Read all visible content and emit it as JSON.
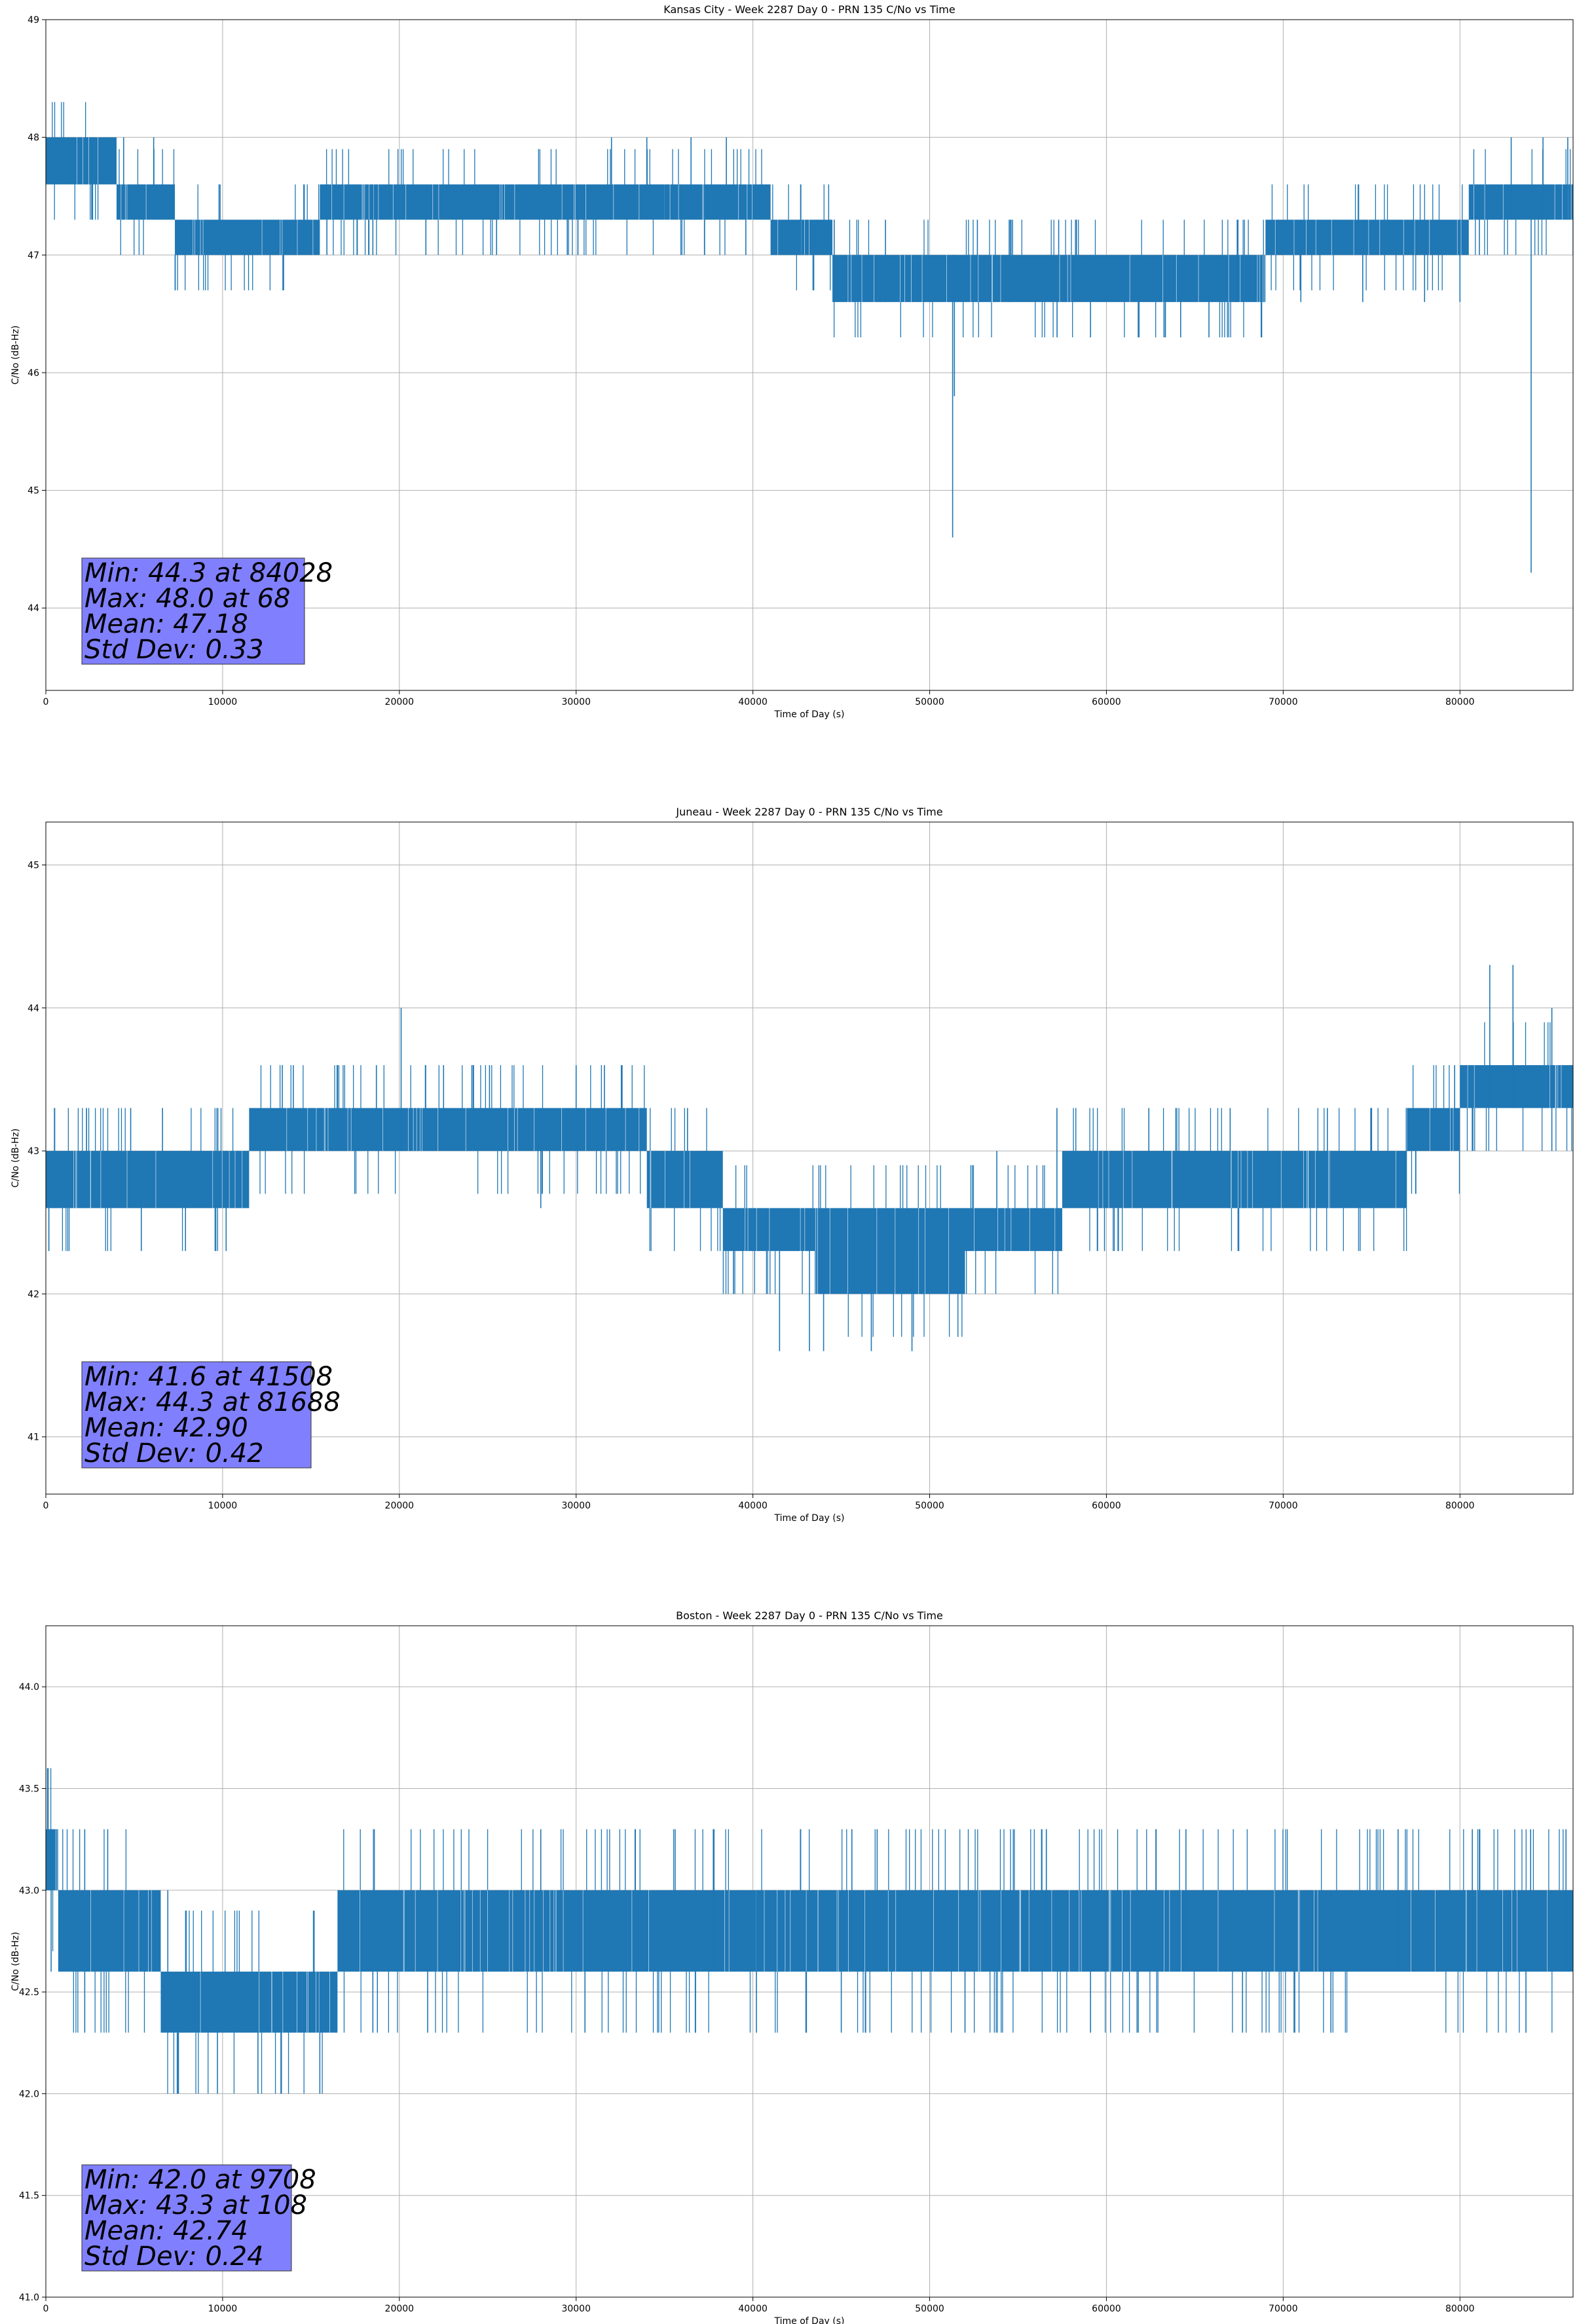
{
  "chart_data": [
    {
      "type": "line",
      "title": "Kansas City - Week 2287 Day 0 - PRN 135 C/No vs Time",
      "xlabel": "Time of Day (s)",
      "ylabel": "C/No (dB-Hz)",
      "xlim": [
        0,
        86400
      ],
      "ylim": [
        43.3,
        49.0
      ],
      "xticks": [
        0,
        10000,
        20000,
        30000,
        40000,
        50000,
        60000,
        70000,
        80000
      ],
      "xtick_labels": [
        "0",
        "10000",
        "20000",
        "30000",
        "40000",
        "50000",
        "60000",
        "70000",
        "80000"
      ],
      "yticks": [
        44,
        45,
        46,
        47,
        48,
        49
      ],
      "ytick_labels": [
        "44",
        "45",
        "46",
        "47",
        "48",
        "49"
      ],
      "grid": true,
      "color": "#1f77b4",
      "bands": [
        {
          "x0": 0,
          "x1": 4000,
          "lo": 47.6,
          "hi": 48.0
        },
        {
          "x0": 4000,
          "x1": 7300,
          "lo": 47.3,
          "hi": 47.6
        },
        {
          "x0": 7300,
          "x1": 15500,
          "lo": 47.0,
          "hi": 47.3
        },
        {
          "x0": 15500,
          "x1": 35000,
          "lo": 47.3,
          "hi": 47.6
        },
        {
          "x0": 35000,
          "x1": 41000,
          "lo": 47.3,
          "hi": 47.6
        },
        {
          "x0": 41000,
          "x1": 44500,
          "lo": 47.0,
          "hi": 47.3
        },
        {
          "x0": 44500,
          "x1": 69000,
          "lo": 46.6,
          "hi": 47.0
        },
        {
          "x0": 69000,
          "x1": 80500,
          "lo": 47.0,
          "hi": 47.3
        },
        {
          "x0": 80500,
          "x1": 86400,
          "lo": 47.3,
          "hi": 47.6
        }
      ],
      "excursions": [
        {
          "x": 1300,
          "lo": 47.6,
          "hi": 48.0
        },
        {
          "x": 2600,
          "lo": 47.3,
          "hi": 48.0
        },
        {
          "x": 4400,
          "lo": 47.3,
          "hi": 48.0
        },
        {
          "x": 6100,
          "lo": 47.3,
          "hi": 48.0
        },
        {
          "x": 9800,
          "lo": 47.0,
          "hi": 47.6
        },
        {
          "x": 15900,
          "lo": 47.0,
          "hi": 47.6
        },
        {
          "x": 18500,
          "lo": 47.0,
          "hi": 47.6
        },
        {
          "x": 21500,
          "lo": 47.0,
          "hi": 47.6
        },
        {
          "x": 25500,
          "lo": 47.0,
          "hi": 47.6
        },
        {
          "x": 29500,
          "lo": 47.0,
          "hi": 47.6
        },
        {
          "x": 32000,
          "lo": 47.3,
          "hi": 48.0
        },
        {
          "x": 34000,
          "lo": 47.3,
          "hi": 48.0
        },
        {
          "x": 36500,
          "lo": 47.3,
          "hi": 48.0
        },
        {
          "x": 38500,
          "lo": 47.3,
          "hi": 48.0
        },
        {
          "x": 39600,
          "lo": 47.0,
          "hi": 47.6
        },
        {
          "x": 42700,
          "lo": 47.0,
          "hi": 47.6
        },
        {
          "x": 44600,
          "lo": 46.6,
          "hi": 47.3
        },
        {
          "x": 47500,
          "lo": 46.6,
          "hi": 47.3
        },
        {
          "x": 51300,
          "lo": 44.6,
          "hi": 47.0
        },
        {
          "x": 51400,
          "lo": 45.8,
          "hi": 47.0
        },
        {
          "x": 52700,
          "lo": 46.6,
          "hi": 47.3
        },
        {
          "x": 54500,
          "lo": 46.6,
          "hi": 47.3
        },
        {
          "x": 57300,
          "lo": 46.6,
          "hi": 47.3
        },
        {
          "x": 59100,
          "lo": 46.3,
          "hi": 47.0
        },
        {
          "x": 61800,
          "lo": 46.3,
          "hi": 47.0
        },
        {
          "x": 64200,
          "lo": 46.3,
          "hi": 47.0
        },
        {
          "x": 65800,
          "lo": 46.3,
          "hi": 47.0
        },
        {
          "x": 67400,
          "lo": 46.6,
          "hi": 47.3
        },
        {
          "x": 71000,
          "lo": 46.6,
          "hi": 47.3
        },
        {
          "x": 74500,
          "lo": 46.6,
          "hi": 47.3
        },
        {
          "x": 78000,
          "lo": 46.6,
          "hi": 47.3
        },
        {
          "x": 80000,
          "lo": 46.6,
          "hi": 47.3
        },
        {
          "x": 81100,
          "lo": 47.0,
          "hi": 47.6
        },
        {
          "x": 82900,
          "lo": 47.3,
          "hi": 48.0
        },
        {
          "x": 84028,
          "lo": 44.3,
          "hi": 47.6
        },
        {
          "x": 84700,
          "lo": 47.3,
          "hi": 48.0
        },
        {
          "x": 86100,
          "lo": 47.3,
          "hi": 48.0
        }
      ],
      "stats": [
        "Min: 44.3 at 84028",
        "Max: 48.0 at 68",
        "Mean: 47.18",
        "Std Dev: 0.33"
      ]
    },
    {
      "type": "line",
      "title": "Juneau - Week 2287 Day 0 - PRN 135 C/No vs Time",
      "xlabel": "Time of Day (s)",
      "ylabel": "C/No (dB-Hz)",
      "xlim": [
        0,
        86400
      ],
      "ylim": [
        40.6,
        45.3
      ],
      "xticks": [
        0,
        10000,
        20000,
        30000,
        40000,
        50000,
        60000,
        70000,
        80000
      ],
      "xtick_labels": [
        "0",
        "10000",
        "20000",
        "30000",
        "40000",
        "50000",
        "60000",
        "70000",
        "80000"
      ],
      "yticks": [
        41,
        42,
        43,
        44,
        45
      ],
      "ytick_labels": [
        "41",
        "42",
        "43",
        "44",
        "45"
      ],
      "grid": true,
      "color": "#1f77b4",
      "bands": [
        {
          "x0": 0,
          "x1": 11500,
          "lo": 42.6,
          "hi": 43.0
        },
        {
          "x0": 11500,
          "x1": 34000,
          "lo": 43.0,
          "hi": 43.3
        },
        {
          "x0": 34000,
          "x1": 38300,
          "lo": 42.6,
          "hi": 43.0
        },
        {
          "x0": 38300,
          "x1": 43500,
          "lo": 42.3,
          "hi": 42.6
        },
        {
          "x0": 43500,
          "x1": 52000,
          "lo": 42.0,
          "hi": 42.6
        },
        {
          "x0": 52000,
          "x1": 57500,
          "lo": 42.3,
          "hi": 42.6
        },
        {
          "x0": 57500,
          "x1": 77000,
          "lo": 42.6,
          "hi": 43.0
        },
        {
          "x0": 77000,
          "x1": 80000,
          "lo": 43.0,
          "hi": 43.3
        },
        {
          "x0": 80000,
          "x1": 86400,
          "lo": 43.3,
          "hi": 43.6
        }
      ],
      "excursions": [
        {
          "x": 500,
          "lo": 42.6,
          "hi": 43.3
        },
        {
          "x": 2300,
          "lo": 42.6,
          "hi": 43.3
        },
        {
          "x": 4800,
          "lo": 42.6,
          "hi": 43.3
        },
        {
          "x": 6600,
          "lo": 42.6,
          "hi": 43.3
        },
        {
          "x": 5400,
          "lo": 42.3,
          "hi": 43.0
        },
        {
          "x": 7900,
          "lo": 42.3,
          "hi": 43.0
        },
        {
          "x": 10200,
          "lo": 42.3,
          "hi": 43.0
        },
        {
          "x": 14000,
          "lo": 43.0,
          "hi": 43.6
        },
        {
          "x": 16500,
          "lo": 43.0,
          "hi": 43.6
        },
        {
          "x": 18700,
          "lo": 43.0,
          "hi": 43.6
        },
        {
          "x": 20100,
          "lo": 43.0,
          "hi": 44.0
        },
        {
          "x": 22500,
          "lo": 43.0,
          "hi": 43.6
        },
        {
          "x": 25100,
          "lo": 43.0,
          "hi": 43.6
        },
        {
          "x": 28000,
          "lo": 42.6,
          "hi": 43.3
        },
        {
          "x": 30000,
          "lo": 43.0,
          "hi": 43.6
        },
        {
          "x": 31600,
          "lo": 43.0,
          "hi": 43.6
        },
        {
          "x": 32600,
          "lo": 43.0,
          "hi": 43.6
        },
        {
          "x": 36300,
          "lo": 42.6,
          "hi": 43.3
        },
        {
          "x": 38900,
          "lo": 42.0,
          "hi": 42.6
        },
        {
          "x": 41508,
          "lo": 41.6,
          "hi": 42.3
        },
        {
          "x": 43200,
          "lo": 41.6,
          "hi": 42.3
        },
        {
          "x": 44000,
          "lo": 41.6,
          "hi": 42.3
        },
        {
          "x": 46700,
          "lo": 41.6,
          "hi": 42.3
        },
        {
          "x": 49000,
          "lo": 41.6,
          "hi": 42.3
        },
        {
          "x": 50500,
          "lo": 42.3,
          "hi": 42.6
        },
        {
          "x": 53800,
          "lo": 42.3,
          "hi": 43.0
        },
        {
          "x": 57200,
          "lo": 42.3,
          "hi": 43.3
        },
        {
          "x": 59500,
          "lo": 42.3,
          "hi": 43.0
        },
        {
          "x": 62400,
          "lo": 42.6,
          "hi": 43.3
        },
        {
          "x": 67000,
          "lo": 42.6,
          "hi": 43.3
        },
        {
          "x": 72500,
          "lo": 42.6,
          "hi": 43.3
        },
        {
          "x": 75000,
          "lo": 42.6,
          "hi": 43.3
        },
        {
          "x": 79700,
          "lo": 43.0,
          "hi": 43.6
        },
        {
          "x": 81688,
          "lo": 43.3,
          "hi": 44.3
        },
        {
          "x": 83000,
          "lo": 43.3,
          "hi": 44.3
        },
        {
          "x": 85200,
          "lo": 43.0,
          "hi": 44.0
        }
      ],
      "stats": [
        "Min: 41.6 at 41508",
        "Max: 44.3 at 81688",
        "Mean: 42.90",
        "Std Dev: 0.42"
      ]
    },
    {
      "type": "line",
      "title": "Boston - Week 2287 Day 0 - PRN 135 C/No vs Time",
      "xlabel": "Time of Day (s)",
      "ylabel": "C/No (dB-Hz)",
      "xlim": [
        0,
        86400
      ],
      "ylim": [
        41.0,
        44.3
      ],
      "xticks": [
        0,
        10000,
        20000,
        30000,
        40000,
        50000,
        60000,
        70000,
        80000
      ],
      "xtick_labels": [
        "0",
        "10000",
        "20000",
        "30000",
        "40000",
        "50000",
        "60000",
        "70000",
        "80000"
      ],
      "yticks": [
        41.0,
        41.5,
        42.0,
        42.5,
        43.0,
        43.5,
        44.0
      ],
      "ytick_labels": [
        "41.0",
        "41.5",
        "42.0",
        "42.5",
        "43.0",
        "43.5",
        "44.0"
      ],
      "grid": true,
      "color": "#1f77b4",
      "bands": [
        {
          "x0": 0,
          "x1": 700,
          "lo": 43.0,
          "hi": 43.3
        },
        {
          "x0": 700,
          "x1": 6500,
          "lo": 42.6,
          "hi": 43.0
        },
        {
          "x0": 6500,
          "x1": 16500,
          "lo": 42.3,
          "hi": 42.6
        },
        {
          "x0": 16500,
          "x1": 86400,
          "lo": 42.6,
          "hi": 43.0
        }
      ],
      "excursions": [
        {
          "x": 300,
          "lo": 42.6,
          "hi": 43.3
        },
        {
          "x": 2200,
          "lo": 42.3,
          "hi": 43.3
        },
        {
          "x": 3500,
          "lo": 42.6,
          "hi": 43.3
        },
        {
          "x": 6900,
          "lo": 42.3,
          "hi": 43.0
        },
        {
          "x": 9708,
          "lo": 42.0,
          "hi": 42.6
        },
        {
          "x": 12000,
          "lo": 42.0,
          "hi": 42.6
        },
        {
          "x": 13300,
          "lo": 42.0,
          "hi": 42.6
        },
        {
          "x": 15500,
          "lo": 42.0,
          "hi": 42.6
        },
        {
          "x": 18500,
          "lo": 42.3,
          "hi": 43.0
        },
        {
          "x": 21600,
          "lo": 42.3,
          "hi": 43.0
        },
        {
          "x": 28000,
          "lo": 42.6,
          "hi": 43.3
        },
        {
          "x": 30500,
          "lo": 42.3,
          "hi": 43.0
        },
        {
          "x": 35600,
          "lo": 42.6,
          "hi": 43.3
        },
        {
          "x": 37800,
          "lo": 42.6,
          "hi": 43.3
        },
        {
          "x": 40200,
          "lo": 42.3,
          "hi": 43.0
        },
        {
          "x": 45000,
          "lo": 42.3,
          "hi": 43.0
        },
        {
          "x": 45600,
          "lo": 42.6,
          "hi": 43.3
        },
        {
          "x": 52000,
          "lo": 42.3,
          "hi": 43.0
        },
        {
          "x": 56600,
          "lo": 42.6,
          "hi": 43.3
        },
        {
          "x": 59100,
          "lo": 42.3,
          "hi": 43.0
        },
        {
          "x": 61800,
          "lo": 42.3,
          "hi": 43.0
        },
        {
          "x": 64500,
          "lo": 42.6,
          "hi": 43.3
        },
        {
          "x": 67700,
          "lo": 42.3,
          "hi": 43.0
        },
        {
          "x": 72700,
          "lo": 42.3,
          "hi": 43.0
        },
        {
          "x": 76500,
          "lo": 42.6,
          "hi": 43.3
        },
        {
          "x": 80700,
          "lo": 42.6,
          "hi": 43.3
        },
        {
          "x": 84000,
          "lo": 42.6,
          "hi": 43.3
        },
        {
          "x": 86000,
          "lo": 42.6,
          "hi": 43.3
        }
      ],
      "stats": [
        "Min: 42.0 at 9708",
        "Max: 43.3 at 108",
        "Mean: 42.74",
        "Std Dev: 0.24"
      ]
    }
  ],
  "colors": {
    "line": "#1f77b4",
    "grid": "#b0b0b0",
    "stats_box": "#8080ff"
  }
}
